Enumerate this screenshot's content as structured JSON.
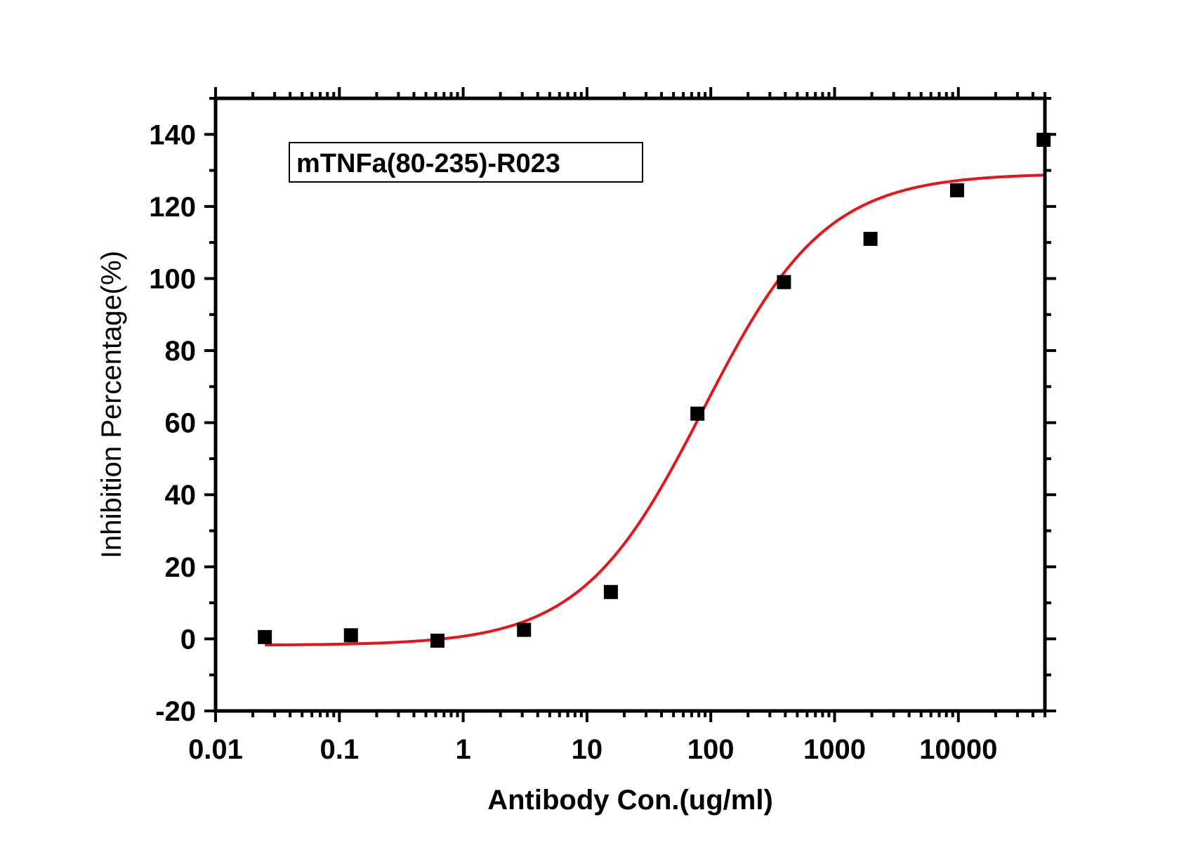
{
  "chart_data": {
    "type": "scatter",
    "x_scale": "log",
    "xlim": [
      0.01,
      50000
    ],
    "ylim": [
      -20,
      150
    ],
    "xlabel": "Antibody Con.(ug/ml)",
    "ylabel": "Inhibition Percentage(%)",
    "legend": {
      "label": "mTNFa(80-235)-R023",
      "placement": "top-left"
    },
    "x_ticks": [
      0.01,
      0.1,
      1,
      10,
      100,
      1000,
      10000
    ],
    "x_tick_labels": [
      "0.01",
      "0.1",
      "1",
      "10",
      "100",
      "1000",
      "10000"
    ],
    "y_ticks": [
      -20,
      0,
      20,
      40,
      60,
      80,
      100,
      120,
      140
    ],
    "y_tick_labels": [
      "-20",
      "0",
      "20",
      "40",
      "60",
      "80",
      "100",
      "120",
      "140"
    ],
    "points": {
      "x": [
        0.025,
        0.124,
        0.62,
        3.1,
        15.6,
        78,
        390,
        1950,
        9760,
        48800
      ],
      "y": [
        0.5,
        1.0,
        -0.5,
        2.5,
        13,
        62.5,
        99,
        111,
        124.5,
        138.5
      ],
      "color": "#000000",
      "marker": "square"
    },
    "fit_curve": {
      "model": "4PL",
      "bottom": -1.8,
      "top": 129.2,
      "ec50": 87,
      "hill": 0.88,
      "x_range": [
        0.025,
        48800
      ],
      "color": "#e8141a"
    },
    "grid": false
  }
}
